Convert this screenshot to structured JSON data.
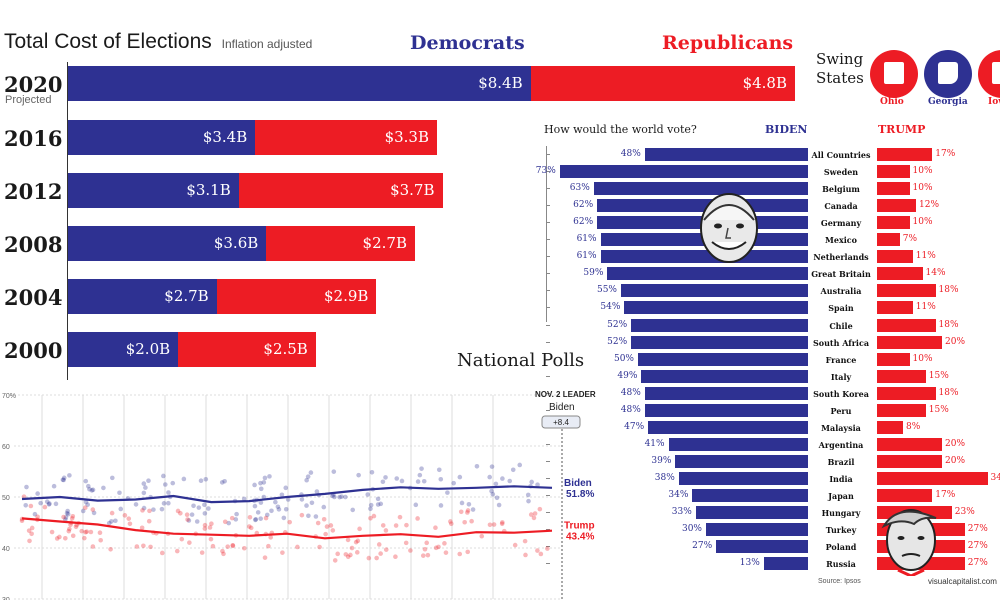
{
  "header": {
    "title": "Total Cost of Elections",
    "subtitle": "Inflation adjusted",
    "democrats": "Democrats",
    "republicans": "Republicans"
  },
  "colors": {
    "democrat": "#2e3192",
    "republican": "#ed1c24"
  },
  "swing": {
    "label_line1": "Swing",
    "label_line2": "States",
    "states": [
      {
        "name": "Ohio",
        "party": "republican",
        "icon": "ohio-map-icon"
      },
      {
        "name": "Georgia",
        "party": "democrat",
        "icon": "georgia-map-icon"
      },
      {
        "name": "Iow",
        "party": "republican",
        "icon": "iowa-map-icon"
      }
    ]
  },
  "polls": {
    "title": "National Polls",
    "leader_label": "NOV. 2 LEADER",
    "leader_name": "Biden",
    "leader_margin": "+8.4"
  },
  "world": {
    "question": "How would the world vote?",
    "biden_label": "BIDEN",
    "trump_label": "TRUMP",
    "source": "Source: Ipsos",
    "credit": "visualcapitalist.com"
  },
  "chart_data": [
    {
      "type": "bar",
      "title": "Total Cost of Elections",
      "subtitle": "Inflation adjusted",
      "categories": [
        "2020",
        "2016",
        "2012",
        "2008",
        "2004",
        "2000"
      ],
      "category_notes": {
        "2020": "Projected"
      },
      "series": [
        {
          "name": "Democrats",
          "values": [
            8.4,
            3.4,
            3.1,
            3.6,
            2.7,
            2.0
          ],
          "labels": [
            "$8.4B",
            "$3.4B",
            "$3.1B",
            "$3.6B",
            "$2.7B",
            "$2.0B"
          ]
        },
        {
          "name": "Republicans",
          "values": [
            4.8,
            3.3,
            3.7,
            2.7,
            2.9,
            2.5
          ],
          "labels": [
            "$4.8B",
            "$3.3B",
            "$3.7B",
            "$2.7B",
            "$2.9B",
            "$2.5B"
          ]
        }
      ],
      "stacked": true,
      "orientation": "horizontal"
    },
    {
      "type": "bar",
      "title": "How would the world vote?",
      "orientation": "horizontal",
      "categories": [
        "All Countries",
        "Sweden",
        "Belgium",
        "Canada",
        "Germany",
        "Mexico",
        "Netherlands",
        "Great Britain",
        "Australia",
        "Spain",
        "Chile",
        "South Africa",
        "France",
        "Italy",
        "South Korea",
        "Peru",
        "Malaysia",
        "Argentina",
        "Brazil",
        "India",
        "Japan",
        "Hungary",
        "Turkey",
        "Poland",
        "Russia"
      ],
      "series": [
        {
          "name": "BIDEN",
          "values": [
            48,
            73,
            63,
            62,
            62,
            61,
            61,
            59,
            55,
            54,
            52,
            52,
            50,
            49,
            48,
            48,
            47,
            41,
            39,
            38,
            34,
            33,
            30,
            27,
            13
          ]
        },
        {
          "name": "TRUMP",
          "values": [
            17,
            10,
            10,
            12,
            10,
            7,
            11,
            14,
            18,
            11,
            18,
            20,
            10,
            15,
            18,
            15,
            8,
            20,
            20,
            34,
            17,
            23,
            27,
            27,
            27
          ]
        }
      ],
      "unit": "%"
    },
    {
      "type": "line",
      "title": "National Polls",
      "y_ticks": [
        "70%",
        "60",
        "50",
        "40",
        "30"
      ],
      "ylim": [
        30,
        70
      ],
      "grid": true,
      "series": [
        {
          "name": "Biden",
          "end_label": "51.8%",
          "values": [
            49.6,
            50.0,
            49.3,
            49.5,
            50.2,
            49.0,
            49.2,
            50.0,
            50.6,
            51.4,
            51.9,
            51.6,
            51.8,
            52.1,
            51.8
          ],
          "points_style": "scatter-and-trend"
        },
        {
          "name": "Trump",
          "end_label": "43.4%",
          "values": [
            45.8,
            45.2,
            44.6,
            43.5,
            42.8,
            42.6,
            42.4,
            42.8,
            41.9,
            42.4,
            42.7,
            42.2,
            43.1,
            43.0,
            43.4
          ],
          "points_style": "scatter-and-trend"
        }
      ]
    }
  ]
}
